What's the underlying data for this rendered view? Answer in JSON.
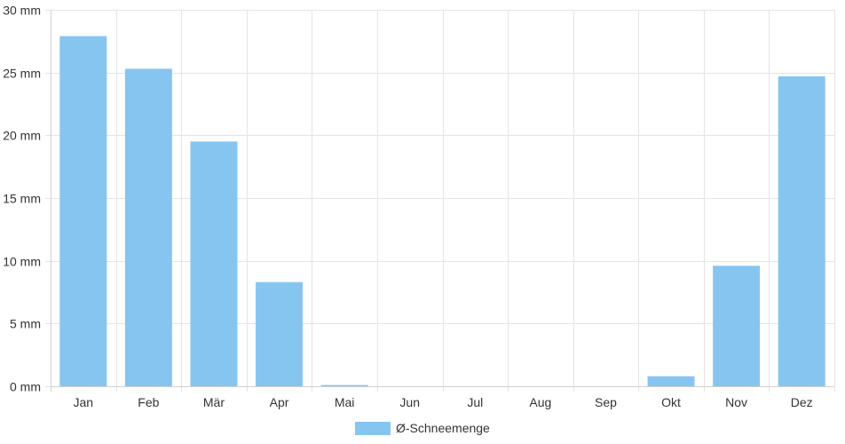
{
  "chart_data": {
    "type": "bar",
    "categories": [
      "Jan",
      "Feb",
      "Mär",
      "Apr",
      "Mai",
      "Jun",
      "Jul",
      "Aug",
      "Sep",
      "Okt",
      "Nov",
      "Dez"
    ],
    "series": [
      {
        "name": "Ø-Schneemenge",
        "color": "#87c5f1",
        "values": [
          27.9,
          25.3,
          19.5,
          8.3,
          0.1,
          0,
          0,
          0,
          0,
          0.8,
          9.6,
          24.7
        ]
      }
    ],
    "y_unit": "mm",
    "ylim": [
      0,
      30
    ],
    "y_ticks": [
      0,
      5,
      10,
      15,
      20,
      25,
      30
    ],
    "grid": true,
    "legend_position": "bottom-center"
  }
}
